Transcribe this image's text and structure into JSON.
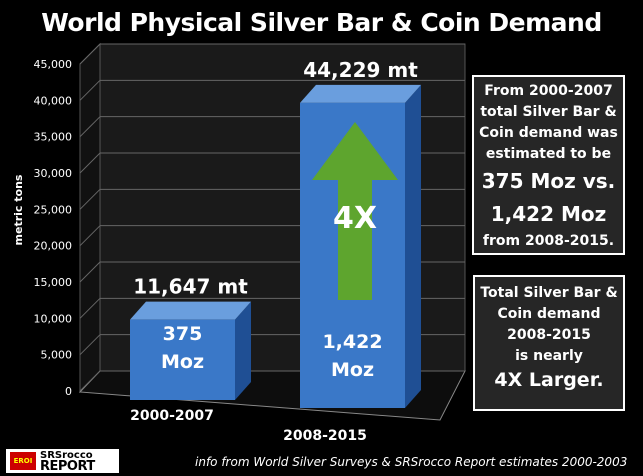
{
  "chart_data": {
    "type": "bar",
    "title": "World Physical Silver Bar & Coin Demand",
    "ylabel": "metric tons",
    "xlabel": "",
    "ylim": [
      0,
      45000
    ],
    "yticks": [
      "0",
      "5,000",
      "10,000",
      "15,000",
      "20,000",
      "25,000",
      "30,000",
      "35,000",
      "40,000",
      "45,000"
    ],
    "categories": [
      "2000-2007",
      "2008-2015"
    ],
    "values": [
      11647,
      44229
    ],
    "value_labels": [
      "11,647 mt",
      "44,229 mt"
    ],
    "inner_labels": [
      [
        "375",
        "Moz"
      ],
      [
        "1,422",
        "Moz"
      ]
    ],
    "arrow_label": "4X",
    "grid": true,
    "colors": {
      "bar_front": "#3a78c8",
      "bar_side": "#1f4f94",
      "bar_top": "#6a9ede",
      "arrow": "#5ea52e"
    }
  },
  "textbox1": [
    "From 2000-2007",
    "total Silver Bar &",
    "Coin demand was",
    "estimated to be",
    "375 Moz vs.",
    "1,422 Moz",
    "from 2008-2015."
  ],
  "textbox2": [
    "Total Silver Bar &",
    "Coin demand",
    "2008-2015",
    "is nearly",
    "4X Larger."
  ],
  "source": "info from World Silver Surveys & SRSrocco Report estimates 2000-2003",
  "logo": {
    "mark": "EROI",
    "line1": "SRSrocco",
    "line2": "REPORT"
  }
}
